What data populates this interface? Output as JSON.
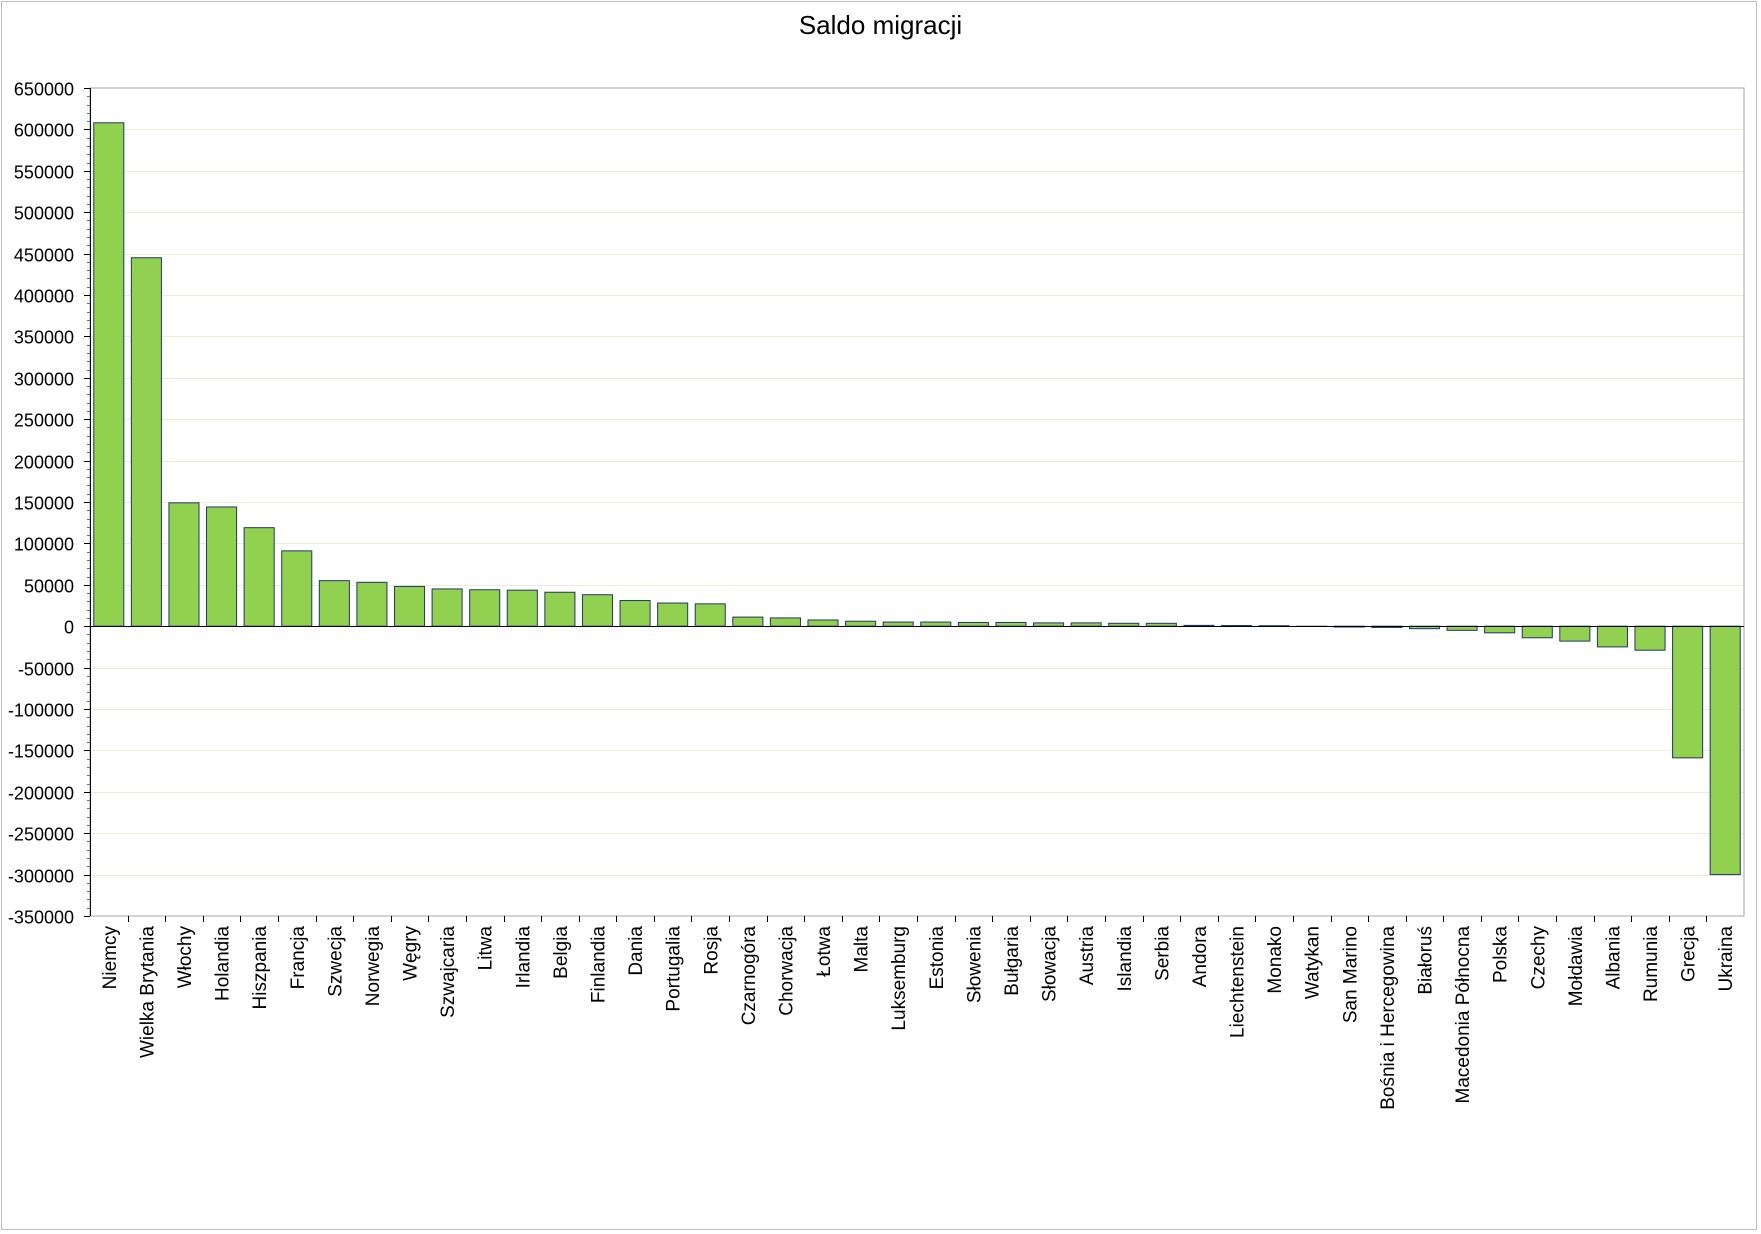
{
  "chart_data": {
    "type": "bar",
    "title": "Saldo migracji",
    "xlabel": "",
    "ylabel": "",
    "ylim": [
      -350000,
      650000
    ],
    "ytick_step": 50000,
    "grid": true,
    "legend": "none",
    "categories": [
      "Niemcy",
      "Wielka Brytania",
      "Włochy",
      "Holandia",
      "Hiszpania",
      "Francja",
      "Szwecja",
      "Norwegia",
      "Węgry",
      "Szwajcaria",
      "Litwa",
      "Irlandia",
      "Belgia",
      "Finlandia",
      "Dania",
      "Portugalia",
      "Rosja",
      "Czarnogóra",
      "Chorwacja",
      "Łotwa",
      "Malta",
      "Luksemburg",
      "Estonia",
      "Słowenia",
      "Bułgaria",
      "Słowacja",
      "Austria",
      "Islandia",
      "Serbia",
      "Andora",
      "Liechtenstein",
      "Monako",
      "Watykan",
      "San Marino",
      "Bośnia i Hercegowina",
      "Białoruś",
      "Macedonia Północna",
      "Polska",
      "Czechy",
      "Mołdawia",
      "Albania",
      "Rumunia",
      "Grecja",
      "Ukraina"
    ],
    "values": [
      608000,
      445000,
      149000,
      144000,
      119000,
      91000,
      55000,
      53000,
      48000,
      45000,
      44000,
      43500,
      41000,
      38000,
      31000,
      28000,
      27000,
      11000,
      10000,
      7500,
      6000,
      5000,
      5000,
      4500,
      4500,
      4000,
      4000,
      3500,
      3500,
      1000,
      800,
      600,
      0,
      -1000,
      -1500,
      -3000,
      -5000,
      -8000,
      -14000,
      -18000,
      -25000,
      -29000,
      -159000,
      -300000
    ]
  },
  "colors": {
    "bar_fill": "#92d050",
    "bar_stroke": "#1f3864",
    "axis": "#000000",
    "minor_tick": "#4472c4",
    "gridline": "#ececd9"
  }
}
